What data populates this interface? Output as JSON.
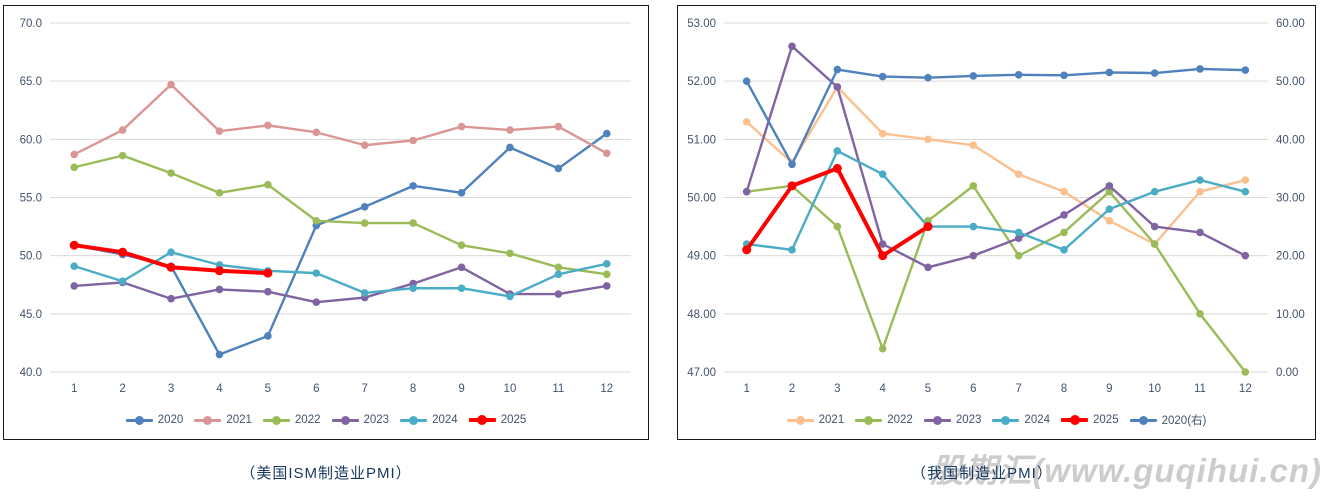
{
  "watermark": "股期汇(www.guqihui.cn)",
  "chart_data": [
    {
      "type": "line",
      "title": "（美国ISM制造业PMI）",
      "xlabel": "",
      "ylabel": "",
      "grid": "horizontal",
      "legend_position": "bottom",
      "x_categories": [
        "1",
        "2",
        "3",
        "4",
        "5",
        "6",
        "7",
        "8",
        "9",
        "10",
        "11",
        "12"
      ],
      "y_axis": {
        "min": 40,
        "max": 70,
        "step": 5,
        "ticks": [
          "70.0",
          "65.0",
          "60.0",
          "55.0",
          "50.0",
          "45.0",
          "40.0"
        ]
      },
      "series": [
        {
          "name": "2020",
          "color": "#4F81BD",
          "values": [
            50.9,
            50.1,
            49.1,
            41.5,
            43.1,
            52.6,
            54.2,
            56.0,
            55.4,
            59.3,
            57.5,
            60.5
          ]
        },
        {
          "name": "2021",
          "color": "#D99694",
          "values": [
            58.7,
            60.8,
            64.7,
            60.7,
            61.2,
            60.6,
            59.5,
            59.9,
            61.1,
            60.8,
            61.1,
            58.8
          ]
        },
        {
          "name": "2022",
          "color": "#9BBB59",
          "values": [
            57.6,
            58.6,
            57.1,
            55.4,
            56.1,
            53.0,
            52.8,
            52.8,
            50.9,
            50.2,
            49.0,
            48.4
          ]
        },
        {
          "name": "2023",
          "color": "#8064A2",
          "values": [
            47.4,
            47.7,
            46.3,
            47.1,
            46.9,
            46.0,
            46.4,
            47.6,
            49.0,
            46.7,
            46.7,
            47.4
          ]
        },
        {
          "name": "2024",
          "color": "#4BACC6",
          "values": [
            49.1,
            47.8,
            50.3,
            49.2,
            48.7,
            48.5,
            46.8,
            47.2,
            47.2,
            46.5,
            48.4,
            49.3
          ]
        },
        {
          "name": "2025",
          "color": "#FF0000",
          "emphasis": true,
          "values": [
            50.9,
            50.3,
            49.0,
            48.7,
            48.5
          ]
        }
      ]
    },
    {
      "type": "line",
      "title": "（我国制造业PMI）",
      "xlabel": "",
      "ylabel": "",
      "grid": "horizontal",
      "legend_position": "bottom",
      "x_categories": [
        "1",
        "2",
        "3",
        "4",
        "5",
        "6",
        "7",
        "8",
        "9",
        "10",
        "11",
        "12"
      ],
      "y_axis": {
        "min": 47,
        "max": 53,
        "step": 1,
        "ticks": [
          "53.00",
          "52.00",
          "51.00",
          "50.00",
          "49.00",
          "48.00",
          "47.00"
        ]
      },
      "y2_axis": {
        "min": 0,
        "max": 60,
        "step": 10,
        "ticks": [
          "60.00",
          "50.00",
          "40.00",
          "30.00",
          "20.00",
          "10.00",
          "0.00"
        ]
      },
      "series": [
        {
          "name": "2021",
          "color": "#FAC090",
          "values": [
            51.3,
            50.6,
            51.9,
            51.1,
            51.0,
            50.9,
            50.4,
            50.1,
            49.6,
            49.2,
            50.1,
            50.3
          ]
        },
        {
          "name": "2022",
          "color": "#9BBB59",
          "values": [
            50.1,
            50.2,
            49.5,
            47.4,
            49.6,
            50.2,
            49.0,
            49.4,
            50.1,
            49.2,
            48.0,
            47.0
          ]
        },
        {
          "name": "2023",
          "color": "#8064A2",
          "values": [
            50.1,
            52.6,
            51.9,
            49.2,
            48.8,
            49.0,
            49.3,
            49.7,
            50.2,
            49.5,
            49.4,
            49.0
          ]
        },
        {
          "name": "2024",
          "color": "#4BACC6",
          "values": [
            49.2,
            49.1,
            50.8,
            50.4,
            49.5,
            49.5,
            49.4,
            49.1,
            49.8,
            50.1,
            50.3,
            50.1
          ]
        },
        {
          "name": "2025",
          "color": "#FF0000",
          "emphasis": true,
          "values": [
            49.1,
            50.2,
            50.5,
            49.0,
            49.5
          ]
        },
        {
          "name": "2020(右)",
          "color": "#4F81BD",
          "axis": "right",
          "values": [
            50.0,
            35.7,
            52.0,
            50.8,
            50.6,
            50.9,
            51.1,
            51.0,
            51.5,
            51.4,
            52.1,
            51.9
          ]
        }
      ]
    }
  ]
}
